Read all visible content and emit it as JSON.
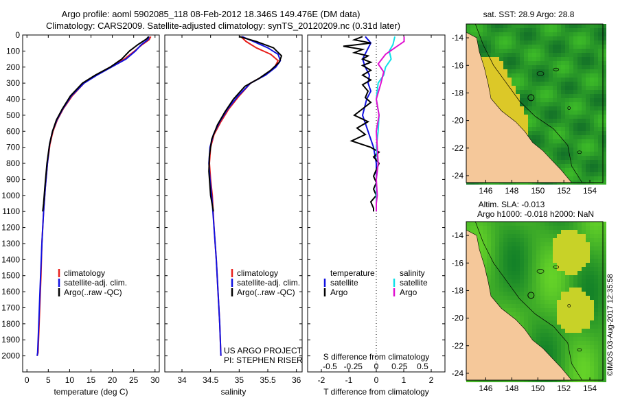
{
  "header": {
    "title_line1": "Argo profile: aoml 5902085_118 08-Feb-2012 18.346S 149.476E (DM data)",
    "title_line2": "Climatology: CARS2009. Satellite-adjusted climatology: synTS_20120209.nc (0.31d later)"
  },
  "colors": {
    "climatology": "#e8201c",
    "satellite": "#1010e0",
    "argo": "#000000",
    "sat_salinity": "#10e0e8",
    "argo_salinity": "#e010d0",
    "land": "#f5c89a",
    "sea_green": "#3cb43c",
    "coast": "#000000"
  },
  "legends": {
    "temp": {
      "items": [
        "climatology",
        "satellite-adj. clim.",
        "Argo(..raw -QC)"
      ]
    },
    "sal": {
      "items": [
        "climatology",
        "satellite-adj. clim.",
        "Argo(..raw -QC)"
      ]
    },
    "diff": {
      "temp_header": "temperature",
      "sal_header": "salinity",
      "temp_items": [
        "satellite",
        "Argo"
      ],
      "sal_items": [
        "satellite",
        "Argo"
      ]
    }
  },
  "credits": {
    "line1": "US ARGO PROJECT",
    "line2": "PI: STEPHEN RISER"
  },
  "map_top": {
    "title": "sat. SST: 28.9 Argo: 28.8"
  },
  "map_bottom": {
    "title_line1": "Altim. SLA: -0.013",
    "title_line2": "Argo h1000: -0.018 h2000: NaN"
  },
  "side_stamp": "©IMOS 03-Aug-2017 12:35:58",
  "chart_data": [
    {
      "id": "temperature",
      "type": "line",
      "xlabel": "temperature (deg C)",
      "ylabel": "",
      "xlim": [
        -1,
        31
      ],
      "ylim": [
        2100,
        0
      ],
      "xticks": [
        0,
        5,
        10,
        15,
        20,
        25,
        30
      ],
      "xtick_labels": [
        "0",
        "5",
        "10",
        "15",
        "20",
        "25",
        "30"
      ],
      "yticks": [
        0,
        100,
        200,
        300,
        400,
        500,
        600,
        700,
        800,
        900,
        1000,
        1100,
        1200,
        1300,
        1400,
        1500,
        1600,
        1700,
        1800,
        1900,
        2000
      ],
      "ytick_labels": [
        "0",
        "100",
        "200",
        "300",
        "400",
        "500",
        "600",
        "700",
        "800",
        "900",
        "1000",
        "1100",
        "1200",
        "1300",
        "1400",
        "1500",
        "1600",
        "1700",
        "1800",
        "1900",
        "2000"
      ],
      "series": [
        {
          "name": "climatology",
          "color": "#e8201c",
          "x": [
            29.0,
            28.6,
            27.0,
            25.2,
            22.8,
            19.5,
            16.2,
            13.4,
            10.6,
            8.5,
            7.1,
            6.1,
            5.4,
            4.8,
            4.3,
            3.9,
            3.5,
            3.3,
            3.0,
            2.8,
            2.6,
            2.4
          ],
          "y": [
            10,
            30,
            60,
            100,
            150,
            200,
            250,
            300,
            380,
            460,
            530,
            600,
            680,
            800,
            950,
            1100,
            1300,
            1500,
            1700,
            1850,
            1980,
            2000
          ]
        },
        {
          "name": "satellite-adj. clim.",
          "color": "#1010e0",
          "x": [
            28.6,
            28.3,
            26.8,
            25.4,
            23.2,
            19.8,
            16.4,
            13.4,
            10.4,
            8.4,
            7.0,
            6.0,
            5.3,
            4.8,
            4.3,
            3.9,
            3.5,
            3.2,
            2.9,
            2.7,
            2.5,
            2.4
          ],
          "y": [
            10,
            30,
            60,
            100,
            150,
            200,
            250,
            300,
            380,
            460,
            530,
            600,
            680,
            800,
            950,
            1100,
            1300,
            1500,
            1700,
            1850,
            1980,
            2000
          ]
        },
        {
          "name": "Argo(..raw -QC)",
          "color": "#000000",
          "x": [
            28.5,
            28.0,
            26.0,
            24.0,
            22.2,
            19.5,
            16.0,
            13.0,
            10.2,
            8.3,
            6.9,
            6.0,
            5.3,
            4.7,
            4.2,
            3.9,
            3.7
          ],
          "y": [
            10,
            25,
            60,
            100,
            150,
            200,
            250,
            300,
            380,
            460,
            530,
            600,
            680,
            800,
            950,
            1050,
            1100
          ]
        }
      ]
    },
    {
      "id": "salinity",
      "type": "line",
      "xlabel": "salinity",
      "xlim": [
        33.7,
        36.1
      ],
      "ylim": [
        2100,
        0
      ],
      "xticks": [
        34,
        34.5,
        35,
        35.5,
        36
      ],
      "xtick_labels": [
        "34",
        "34.5",
        "35",
        "35.5",
        "36"
      ],
      "series": [
        {
          "name": "climatology",
          "color": "#e8201c",
          "x": [
            35.03,
            35.12,
            35.3,
            35.55,
            35.68,
            35.62,
            35.45,
            35.2,
            35.0,
            34.82,
            34.68,
            34.56,
            34.5,
            34.48,
            34.5,
            34.53,
            34.56,
            34.6,
            34.63,
            34.66,
            34.68
          ],
          "y": [
            10,
            40,
            80,
            120,
            160,
            200,
            250,
            300,
            380,
            460,
            540,
            620,
            700,
            800,
            900,
            1000,
            1200,
            1400,
            1600,
            1800,
            2000
          ]
        },
        {
          "name": "satellite-adj. clim.",
          "color": "#1010e0",
          "x": [
            35.05,
            35.25,
            35.5,
            35.68,
            35.72,
            35.64,
            35.46,
            35.2,
            34.98,
            34.8,
            34.66,
            34.55,
            34.49,
            34.47,
            34.49,
            34.52,
            34.56,
            34.6,
            34.63,
            34.66,
            34.68
          ],
          "y": [
            10,
            40,
            80,
            120,
            160,
            200,
            250,
            300,
            380,
            460,
            540,
            620,
            700,
            800,
            900,
            1000,
            1200,
            1400,
            1600,
            1800,
            2000
          ]
        },
        {
          "name": "Argo(..raw -QC)",
          "color": "#000000",
          "x": [
            35.0,
            35.3,
            35.6,
            35.74,
            35.7,
            35.55,
            35.35,
            35.1,
            34.9,
            34.75,
            34.62,
            34.52,
            34.48,
            34.47,
            34.5,
            34.55
          ],
          "y": [
            10,
            40,
            80,
            130,
            170,
            220,
            270,
            320,
            400,
            480,
            560,
            650,
            750,
            850,
            1000,
            1100
          ]
        }
      ]
    },
    {
      "id": "difference",
      "type": "line",
      "xlabel": "T difference from climatology",
      "xlabel_top": "S difference from climatology",
      "xlim": [
        -2.5,
        2.5
      ],
      "ylim": [
        2100,
        0
      ],
      "xticks": [
        -2,
        -1,
        0,
        1,
        2
      ],
      "xtick_labels": [
        "-2",
        "-1",
        "0",
        "1",
        "2"
      ],
      "xticks_s": [
        -0.5,
        -0.25,
        0,
        0.25,
        0.5
      ],
      "xtick_labels_s": [
        "-0.5",
        "-0.25",
        "0",
        "0.25",
        "0.5"
      ],
      "series": [
        {
          "name": "temperature satellite",
          "color": "#1010e0",
          "units": "T",
          "x": [
            -0.4,
            -0.2,
            -0.35,
            -0.5,
            -0.4,
            -0.25,
            -0.3,
            -0.2,
            -0.35,
            -0.5,
            -0.3,
            -0.1,
            0.0,
            0.0,
            0.0
          ],
          "y": [
            10,
            50,
            100,
            150,
            200,
            250,
            300,
            350,
            400,
            500,
            600,
            700,
            800,
            900,
            1000
          ]
        },
        {
          "name": "temperature Argo",
          "color": "#000000",
          "units": "T",
          "x": [
            -0.5,
            -0.8,
            -0.2,
            -1.2,
            -0.5,
            -0.8,
            -0.3,
            -0.5,
            -0.2,
            -0.5,
            -0.2,
            -0.5,
            -0.2,
            -0.5,
            -0.3,
            -0.4,
            -0.2,
            -0.5,
            -0.8,
            -0.3,
            -0.7,
            -0.4,
            -0.9,
            -0.2,
            0.1,
            -0.1,
            0.1,
            0.0,
            -0.1,
            0.0,
            -0.1,
            0.0,
            -0.2,
            -0.1,
            -0.1
          ],
          "y": [
            10,
            30,
            50,
            70,
            90,
            110,
            130,
            150,
            170,
            190,
            220,
            250,
            280,
            310,
            350,
            390,
            420,
            460,
            500,
            540,
            580,
            620,
            660,
            700,
            730,
            760,
            800,
            840,
            880,
            920,
            960,
            1000,
            1040,
            1080,
            1100
          ]
        },
        {
          "name": "salinity satellite",
          "color": "#10e0e8",
          "units": "S",
          "x": [
            0.2,
            0.18,
            0.14,
            0.16,
            0.1,
            0.08,
            0.02,
            0.0,
            0.03,
            0.02,
            0.0,
            0.02,
            0.0,
            0.0,
            0.0,
            0.0
          ],
          "y": [
            10,
            60,
            100,
            150,
            200,
            250,
            300,
            400,
            500,
            600,
            700,
            800,
            900,
            1000,
            1050,
            1100
          ]
        },
        {
          "name": "salinity Argo",
          "color": "#e010d0",
          "units": "S",
          "x": [
            0.3,
            0.3,
            0.2,
            0.1,
            0.02,
            0.08,
            0.05,
            0.0,
            0.03,
            0.0,
            0.01,
            0.02,
            0.0,
            0.01,
            0.0,
            0.0
          ],
          "y": [
            10,
            40,
            80,
            120,
            180,
            230,
            300,
            400,
            500,
            600,
            700,
            800,
            900,
            1000,
            1050,
            1100
          ]
        }
      ]
    },
    {
      "id": "map_sst",
      "type": "heatmap",
      "title": "sat. SST: 28.9 Argo: 28.8",
      "xlim": [
        144.5,
        155
      ],
      "ylim": [
        -24.5,
        -13
      ],
      "xticks": [
        146,
        148,
        150,
        152,
        154
      ],
      "xtick_labels": [
        "146",
        "148",
        "150",
        "152",
        "154"
      ],
      "yticks": [
        -14,
        -16,
        -18,
        -20,
        -22,
        -24
      ],
      "ytick_labels": [
        "-14",
        "-16",
        "-18",
        "-20",
        "-22",
        "-24"
      ],
      "argo_position": [
        149.476,
        -18.346
      ]
    },
    {
      "id": "map_sla",
      "type": "heatmap",
      "title": "Altim. SLA: -0.013 / Argo h1000: -0.018 h2000: NaN",
      "xlim": [
        144.5,
        155
      ],
      "ylim": [
        -24.5,
        -13
      ],
      "xticks": [
        146,
        148,
        150,
        152,
        154
      ],
      "xtick_labels": [
        "146",
        "148",
        "150",
        "152",
        "154"
      ],
      "yticks": [
        -14,
        -16,
        -18,
        -20,
        -22,
        -24
      ],
      "ytick_labels": [
        "-14",
        "-16",
        "-18",
        "-20",
        "-22",
        "-24"
      ],
      "argo_position": [
        149.476,
        -18.346
      ]
    }
  ]
}
